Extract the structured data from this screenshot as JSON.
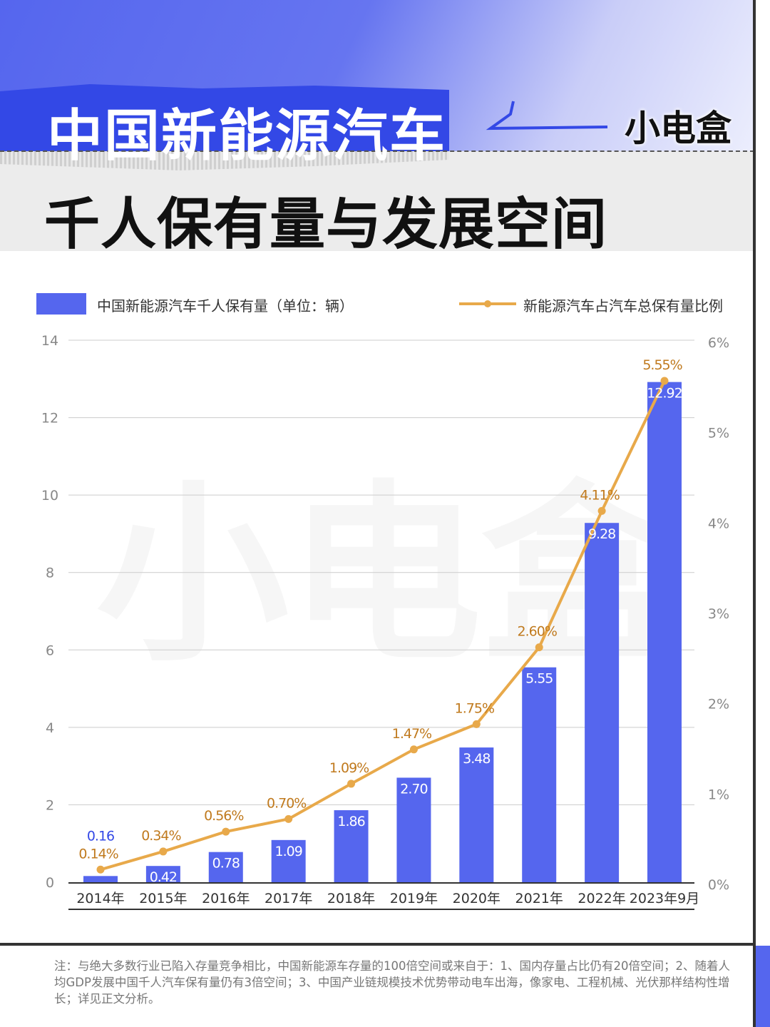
{
  "header": {
    "title_line1": "中国新能源汽车",
    "title_line2": "千人保有量与发展空间",
    "brand": "小电盒",
    "watermark": "小电盒"
  },
  "colors": {
    "bar": "#5566ee",
    "line": "#e8a94a",
    "line_label": "#c07a1e",
    "title_band": "#3348e6"
  },
  "chart_data": {
    "type": "bar+line",
    "categories": [
      "2014年",
      "2015年",
      "2016年",
      "2017年",
      "2018年",
      "2019年",
      "2020年",
      "2021年",
      "2022年",
      "2023年9月"
    ],
    "series": [
      {
        "name": "中国新能源汽车千人保有量（单位：辆）",
        "type": "bar",
        "axis": "left",
        "values": [
          0.16,
          0.42,
          0.78,
          1.09,
          1.86,
          2.7,
          3.48,
          5.55,
          9.28,
          12.92
        ],
        "labels": [
          "0.16",
          "0.42",
          "0.78",
          "1.09",
          "1.86",
          "2.70",
          "3.48",
          "5.55",
          "9.28",
          "12.92"
        ]
      },
      {
        "name": "新能源汽车占汽车总保有量比例",
        "type": "line",
        "axis": "right",
        "values": [
          0.14,
          0.34,
          0.56,
          0.7,
          1.09,
          1.47,
          1.75,
          2.6,
          4.11,
          5.55
        ],
        "labels": [
          "0.14%",
          "0.34%",
          "0.56%",
          "0.70%",
          "1.09%",
          "1.47%",
          "1.75%",
          "2.60%",
          "4.11%",
          "5.55%"
        ]
      }
    ],
    "y_left": {
      "range": [
        0,
        14
      ],
      "ticks": [
        "0",
        "2",
        "4",
        "6",
        "8",
        "10",
        "12",
        "14"
      ]
    },
    "y_right": {
      "range": [
        0,
        6
      ],
      "ticks": [
        "0%",
        "1%",
        "2%",
        "3%",
        "4%",
        "5%",
        "6%"
      ]
    },
    "grid": true,
    "legend": "top"
  },
  "note": "注：与绝大多数行业已陷入存量竞争相比，中国新能源车存量的100倍空间或来自于：1、国内存量占比仍有20倍空间；2、随着人均GDP发展中国千人汽车保有量仍有3倍空间；3、中国产业链规模技术优势带动电车出海，像家电、工程机械、光伏那样结构性增长；详见正文分析。"
}
